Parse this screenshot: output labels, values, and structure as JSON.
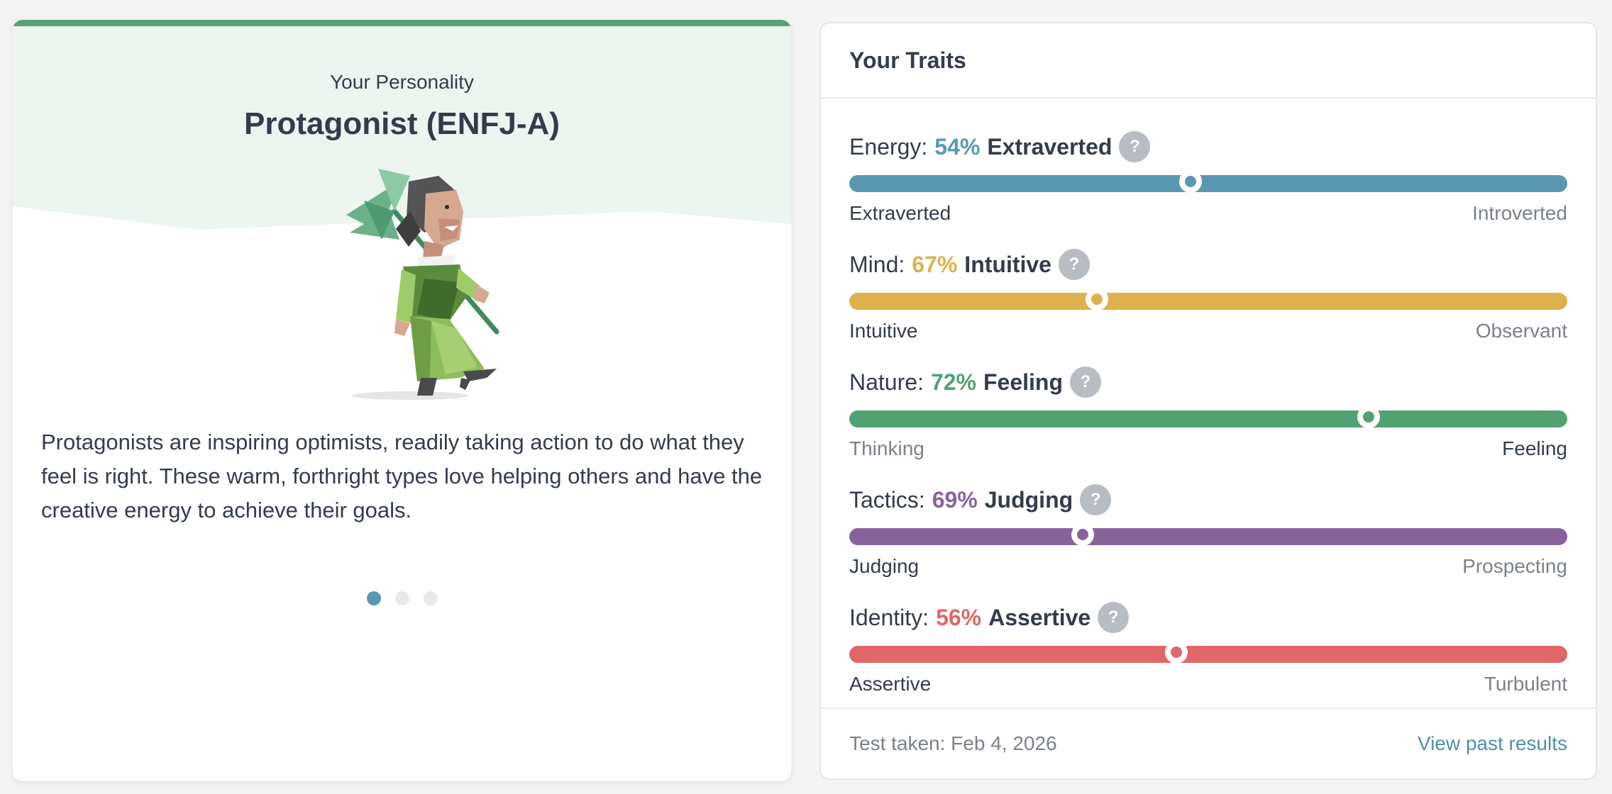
{
  "personality": {
    "subtitle": "Your Personality",
    "type_name": "Protagonist (ENFJ-A)",
    "description": "Protagonists are inspiring optimists, readily taking action to do what they feel is right. These warm, forthright types love helping others and have the creative energy to achieve their goals.",
    "carousel": {
      "count": 3,
      "active": 0
    },
    "accent_color": "#56a477",
    "hero_color": "#ecf5ef"
  },
  "traits": {
    "title": "Your Traits",
    "items": [
      {
        "label": "Energy:",
        "percent": "54%",
        "trait": "Extraverted",
        "left": "Extraverted",
        "right": "Introverted",
        "dominant": "left",
        "position": 0.475,
        "color": "#5a98b2"
      },
      {
        "label": "Mind:",
        "percent": "67%",
        "trait": "Intuitive",
        "left": "Intuitive",
        "right": "Observant",
        "dominant": "left",
        "position": 0.345,
        "color": "#ddb14e"
      },
      {
        "label": "Nature:",
        "percent": "72%",
        "trait": "Feeling",
        "left": "Thinking",
        "right": "Feeling",
        "dominant": "right",
        "position": 0.723,
        "color": "#51a173"
      },
      {
        "label": "Tactics:",
        "percent": "69%",
        "trait": "Judging",
        "left": "Judging",
        "right": "Prospecting",
        "dominant": "left",
        "position": 0.325,
        "color": "#86649b"
      },
      {
        "label": "Identity:",
        "percent": "56%",
        "trait": "Assertive",
        "left": "Assertive",
        "right": "Turbulent",
        "dominant": "left",
        "position": 0.456,
        "color": "#e06767"
      }
    ],
    "help_glyph": "?",
    "help_icon": "question-circle-icon"
  },
  "footer": {
    "test_taken": "Test taken: Feb 4, 2026",
    "past_results_link": "View past results"
  }
}
